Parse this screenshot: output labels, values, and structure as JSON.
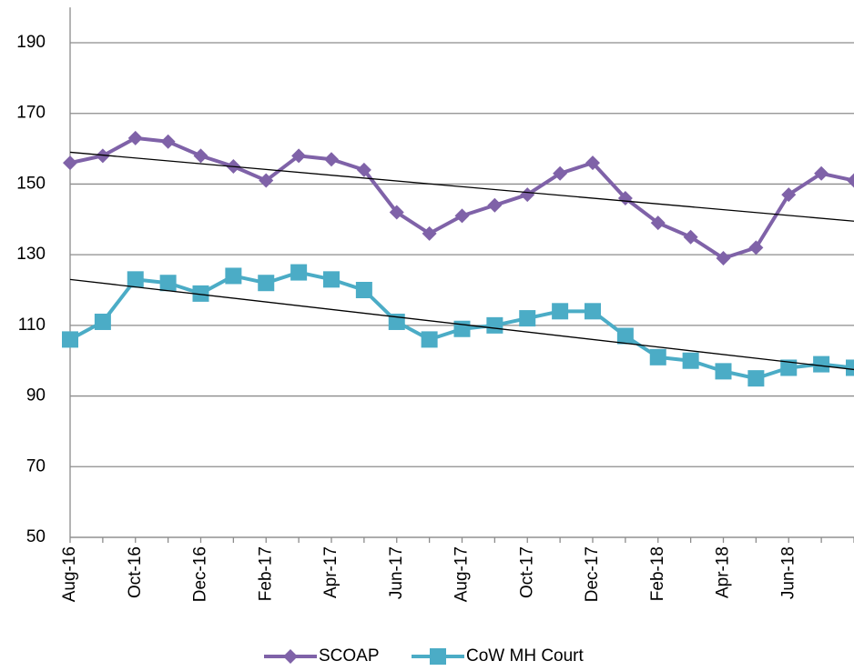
{
  "chart_data": {
    "type": "line",
    "categories": [
      "Aug-16",
      null,
      "Oct-16",
      null,
      "Dec-16",
      null,
      "Feb-17",
      null,
      "Apr-17",
      null,
      "Jun-17",
      null,
      "Aug-17",
      null,
      "Oct-17",
      null,
      "Dec-17",
      null,
      "Feb-18",
      null,
      "Apr-18",
      null,
      "Jun-18",
      null,
      null
    ],
    "series": [
      {
        "name": "SCOAP",
        "color": "#7f62a8",
        "marker": "diamond",
        "values": [
          156,
          158,
          163,
          162,
          158,
          155,
          151,
          158,
          157,
          154,
          142,
          136,
          141,
          144,
          147,
          153,
          156,
          146,
          139,
          135,
          129,
          132,
          147,
          153,
          151
        ],
        "trend": [
          159,
          139.5
        ]
      },
      {
        "name": "CoW MH Court",
        "color": "#4bacc6",
        "marker": "square",
        "values": [
          106,
          111,
          123,
          122,
          119,
          124,
          122,
          125,
          123,
          120,
          111,
          106,
          109,
          110,
          112,
          114,
          114,
          107,
          101,
          100,
          97,
          95,
          98,
          99,
          98
        ],
        "trend": [
          123,
          97.5
        ]
      }
    ],
    "ylim": [
      50,
      200
    ],
    "yticks": [
      50,
      70,
      90,
      110,
      130,
      150,
      170,
      190
    ],
    "grid": true,
    "legend": "bottom"
  }
}
